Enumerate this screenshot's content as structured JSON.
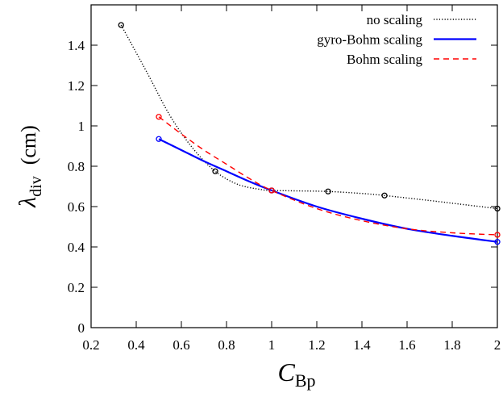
{
  "chart_data": {
    "type": "line",
    "xlabel": "C",
    "xlabel_sub": "Bp",
    "ylabel": "λ",
    "ylabel_sub": "div",
    "ylabel_unit": "(cm)",
    "xlim": [
      0.2,
      2
    ],
    "ylim": [
      0,
      1.6
    ],
    "x_ticks": [
      0.2,
      0.4,
      0.6,
      0.8,
      1,
      1.2,
      1.4,
      1.6,
      1.8,
      2
    ],
    "x_tick_labels": [
      "0.2",
      "0.4",
      "0.6",
      "0.8",
      "1",
      "1.2",
      "1.4",
      "1.6",
      "1.8",
      "2"
    ],
    "y_ticks": [
      0,
      0.2,
      0.4,
      0.6,
      0.8,
      1,
      1.2,
      1.4
    ],
    "y_tick_labels": [
      "0",
      "0.2",
      "0.4",
      "0.6",
      "0.8",
      "1",
      "1.2",
      "1.4"
    ],
    "legend_position": "top-right",
    "series": [
      {
        "name": "no scaling",
        "color": "#000000",
        "style": "dotted",
        "points_x": [
          0.333,
          0.75,
          1.0,
          1.25,
          1.5,
          2.0
        ],
        "points_y": [
          1.5,
          0.775,
          0.68,
          0.675,
          0.655,
          0.59
        ],
        "curve_x": [
          0.333,
          0.45,
          0.55,
          0.65,
          0.75,
          0.85,
          0.95,
          1.0,
          1.1,
          1.25,
          1.4,
          1.5,
          1.7,
          1.85,
          2.0
        ],
        "curve_y": [
          1.5,
          1.26,
          1.05,
          0.89,
          0.775,
          0.71,
          0.685,
          0.68,
          0.678,
          0.675,
          0.665,
          0.655,
          0.63,
          0.61,
          0.59
        ]
      },
      {
        "name": "gyro-Bohm scaling",
        "color": "#0000ff",
        "style": "solid",
        "points_x": [
          0.5,
          1.0,
          2.0
        ],
        "points_y": [
          0.935,
          0.68,
          0.425
        ],
        "curve_x": [
          0.5,
          0.6,
          0.7,
          0.8,
          0.9,
          1.0,
          1.2,
          1.4,
          1.6,
          1.8,
          2.0
        ],
        "curve_y": [
          0.935,
          0.88,
          0.825,
          0.775,
          0.725,
          0.68,
          0.6,
          0.54,
          0.49,
          0.455,
          0.425
        ]
      },
      {
        "name": "Bohm scaling",
        "color": "#ff0000",
        "style": "dashed",
        "points_x": [
          0.5,
          1.0,
          2.0
        ],
        "points_y": [
          1.045,
          0.68,
          0.46
        ],
        "curve_x": [
          0.5,
          0.6,
          0.7,
          0.8,
          0.9,
          1.0,
          1.2,
          1.4,
          1.6,
          1.8,
          2.0
        ],
        "curve_y": [
          1.045,
          0.96,
          0.88,
          0.81,
          0.74,
          0.68,
          0.59,
          0.53,
          0.49,
          0.47,
          0.46
        ]
      }
    ]
  }
}
